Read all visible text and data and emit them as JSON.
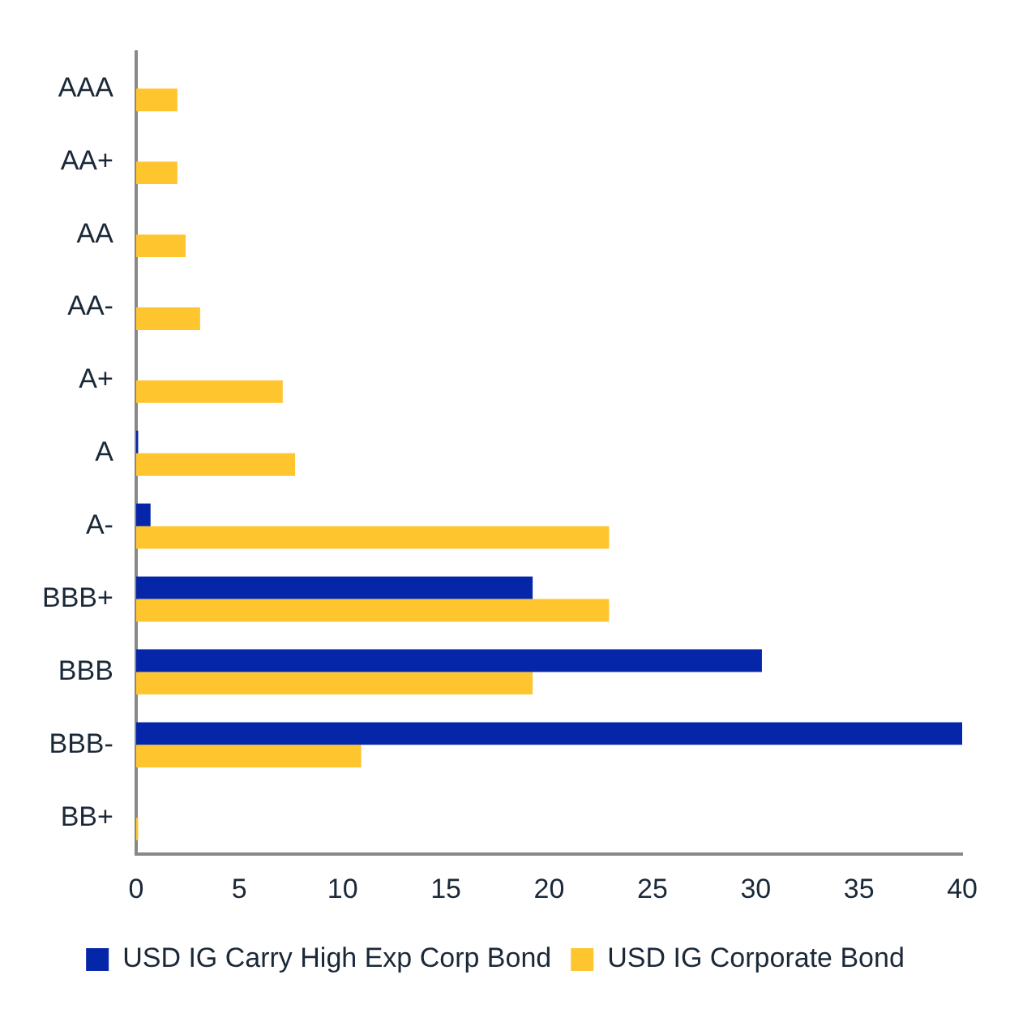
{
  "chart_data": {
    "type": "bar",
    "orientation": "horizontal",
    "categories": [
      "AAA",
      "AA+",
      "AA",
      "AA-",
      "A+",
      "A",
      "A-",
      "BBB+",
      "BBB",
      "BBB-",
      "BB+"
    ],
    "series": [
      {
        "name": "USD IG Carry High Exp Corp Bond",
        "color": "#0526a8",
        "values": [
          0,
          0,
          0,
          0,
          0,
          0.1,
          0.7,
          19.2,
          30.3,
          40,
          0
        ]
      },
      {
        "name": "USD IG Corporate Bond",
        "color": "#ffc52f",
        "values": [
          2.0,
          2.0,
          2.4,
          3.1,
          7.1,
          7.7,
          22.9,
          22.9,
          19.2,
          10.9,
          0.1
        ]
      }
    ],
    "xlim": [
      0,
      40
    ],
    "xticks": [
      0,
      5,
      10,
      15,
      20,
      25,
      30,
      35,
      40
    ],
    "grid": false,
    "legend": "bottom"
  }
}
